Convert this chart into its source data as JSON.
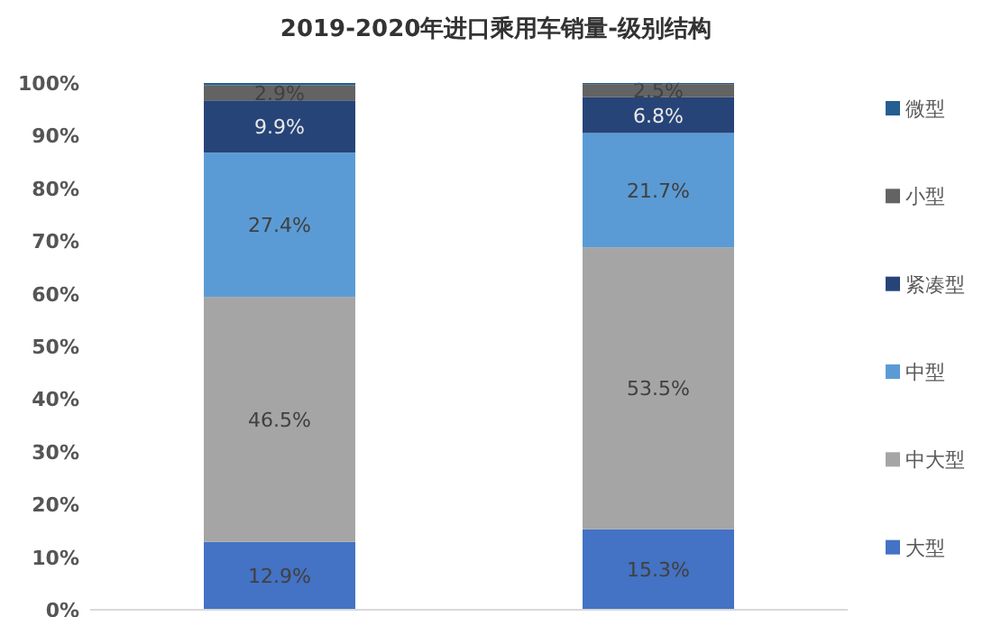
{
  "chart_data": {
    "type": "bar",
    "stacked": true,
    "title": "2019-2020年进口乘用车销量-级别结构",
    "categories": [
      null,
      null
    ],
    "series": [
      {
        "name": "大型",
        "color": "#4472c4",
        "values": [
          12.9,
          15.3
        ],
        "value_labels": [
          "12.9%",
          "15.3%"
        ]
      },
      {
        "name": "中大型",
        "color": "#a5a5a5",
        "values": [
          46.5,
          53.5
        ],
        "value_labels": [
          "46.5%",
          "53.5%"
        ]
      },
      {
        "name": "中型",
        "color": "#5b9bd5",
        "values": [
          27.4,
          21.7
        ],
        "value_labels": [
          "27.4%",
          "21.7%"
        ]
      },
      {
        "name": "紧凑型",
        "color": "#264478",
        "values": [
          9.9,
          6.8
        ],
        "value_labels": [
          "9.9%",
          "6.8%"
        ]
      },
      {
        "name": "小型",
        "color": "#636363",
        "values": [
          2.9,
          2.5
        ],
        "value_labels": [
          "2.9%",
          "2.5%"
        ]
      },
      {
        "name": "微型",
        "color": "#255e91",
        "values": [
          0.4,
          0.2
        ],
        "value_labels": [
          null,
          null
        ]
      }
    ],
    "ylim": [
      0,
      100
    ],
    "yticks": [
      {
        "value": 0,
        "label": "0%"
      },
      {
        "value": 10,
        "label": "10%"
      },
      {
        "value": 20,
        "label": "20%"
      },
      {
        "value": 30,
        "label": "30%"
      },
      {
        "value": 40,
        "label": "40%"
      },
      {
        "value": 50,
        "label": "50%"
      },
      {
        "value": 60,
        "label": "60%"
      },
      {
        "value": 70,
        "label": "70%"
      },
      {
        "value": 80,
        "label": "80%"
      },
      {
        "value": 90,
        "label": "90%"
      },
      {
        "value": 100,
        "label": "100%"
      }
    ],
    "grid": false,
    "legend": "right"
  }
}
